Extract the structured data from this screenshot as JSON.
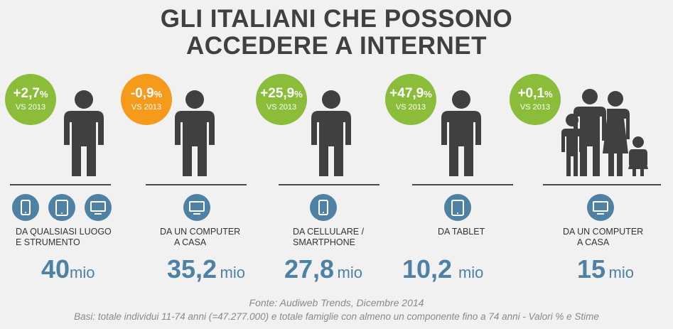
{
  "title_lines": [
    "GLI ITALIANI CHE POSSONO",
    "ACCEDERE A INTERNET"
  ],
  "colors": {
    "green": "#8cbd3a",
    "orange": "#f59a1b",
    "blue": "#4e81a3",
    "dark": "#404040"
  },
  "stats": [
    {
      "change": "+2,7",
      "pct_sign": "%",
      "vs": "VS 2013",
      "trend": "up",
      "icons": [
        "smartphone-icon",
        "tablet-icon",
        "monitor-icon"
      ],
      "label_lines": [
        "DA QUALSIASI LUOGO",
        "E STRUMENTO"
      ],
      "value": "40",
      "unit": "mio"
    },
    {
      "change": "-0,9",
      "pct_sign": "%",
      "vs": "VS 2013",
      "trend": "down",
      "icons": [
        "monitor-icon"
      ],
      "label_lines": [
        "DA UN COMPUTER",
        "A CASA"
      ],
      "value": "35,2",
      "unit": "mio"
    },
    {
      "change": "+25,9",
      "pct_sign": "%",
      "vs": "VS 2013",
      "trend": "up",
      "icons": [
        "smartphone-icon"
      ],
      "label_lines": [
        "DA CELLULARE /",
        "SMARTPHONE"
      ],
      "value": "27,8",
      "unit": "mio"
    },
    {
      "change": "+47,9",
      "pct_sign": "%",
      "vs": "VS 2013",
      "trend": "up",
      "icons": [
        "tablet-icon"
      ],
      "label_lines": [
        "DA TABLET",
        ""
      ],
      "value": "10,2",
      "unit": "mio"
    },
    {
      "change": "+0,1",
      "pct_sign": "%",
      "vs": "VS 2013",
      "trend": "up",
      "icons": [
        "monitor-icon"
      ],
      "label_lines": [
        "DA UN COMPUTER",
        "A CASA"
      ],
      "value": "15",
      "unit": "mio"
    }
  ],
  "source": "Fonte: Audiweb Trends, Dicembre 2014",
  "basis": "Basi: totale individui 11-74 anni (=47.277.000) e totale famiglie con almeno un componente fino a 74 anni - Valori % e Stime"
}
